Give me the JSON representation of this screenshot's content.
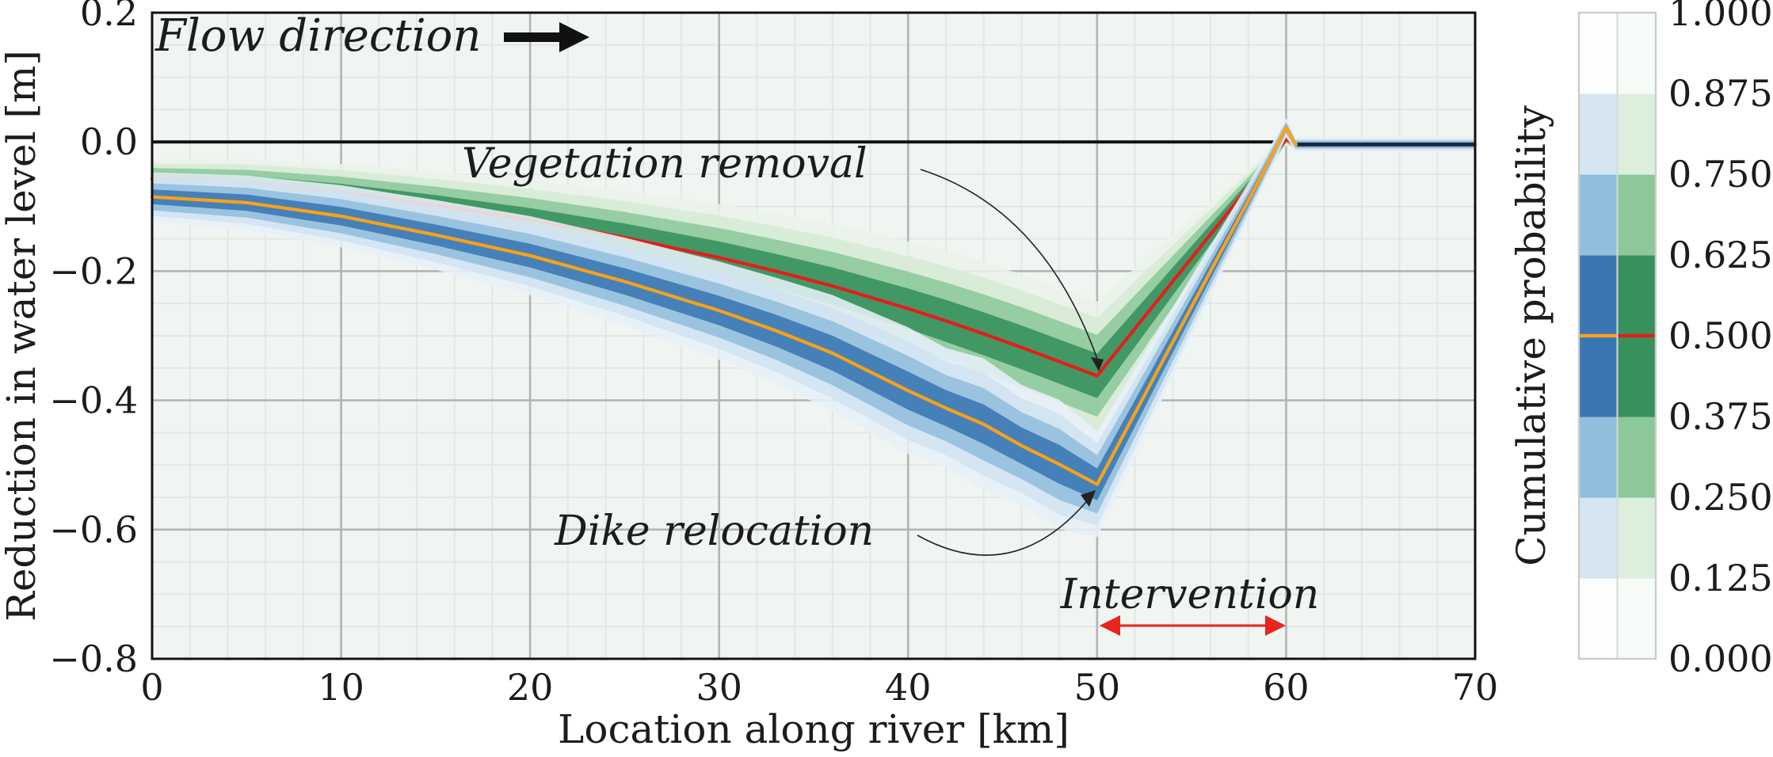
{
  "figure": {
    "background": "#ffffff",
    "plot_background": "#f0f5f2"
  },
  "axes": {
    "x_label": "Location along river [km]",
    "y_label": "Reduction in water level [m]",
    "x_range_km": [
      0,
      70
    ],
    "y_range_m": [
      -0.8,
      0.2
    ],
    "x_ticks": [
      {
        "v": 0,
        "label": "0"
      },
      {
        "v": 10,
        "label": "10"
      },
      {
        "v": 20,
        "label": "20"
      },
      {
        "v": 30,
        "label": "30"
      },
      {
        "v": 40,
        "label": "40"
      },
      {
        "v": 50,
        "label": "50"
      },
      {
        "v": 60,
        "label": "60"
      },
      {
        "v": 70,
        "label": "70"
      }
    ],
    "y_ticks": [
      {
        "v": 0.2,
        "label": "0.2"
      },
      {
        "v": 0.0,
        "label": "0.0"
      },
      {
        "v": -0.2,
        "label": "−0.2"
      },
      {
        "v": -0.4,
        "label": "−0.4"
      },
      {
        "v": -0.6,
        "label": "−0.6"
      },
      {
        "v": -0.8,
        "label": "−0.8"
      }
    ],
    "grid": {
      "x_minor_step_km": 2,
      "y_minor_step_m": 0.05,
      "minor_color": "#e0e8e3",
      "major_color": "#b1b5b3",
      "zero_line_color": "#111111"
    }
  },
  "annotations": {
    "flow_direction": "Flow direction",
    "vegetation_removal": "Vegetation removal",
    "dike_relocation": "Dike relocation",
    "intervention": "Intervention",
    "intervention_arrow_color": "#e8251d",
    "flow_arrow_color": "#111111",
    "leader_line_color": "#222222"
  },
  "colorbar": {
    "label": "Cumulative probability",
    "ticks": [
      "1.000",
      "0.875",
      "0.750",
      "0.625",
      "0.500",
      "0.375",
      "0.250",
      "0.125",
      "0.000"
    ],
    "blue_shades_out_to_in": [
      "#fbfdfe",
      "#d6e5f2",
      "#92bedd",
      "#3a76b2"
    ],
    "green_shades_out_to_in": [
      "#f7fbf7",
      "#dceedc",
      "#8cc89a",
      "#37915c"
    ],
    "median_marker_blue_column": "#f7a21a",
    "median_marker_green_column": "#e51d1d",
    "border_color": "#c9cdcb"
  },
  "chart_data": {
    "type": "area",
    "subtype": "fan-chart (cumulative-probability bands around median)",
    "xlabel": "Location along river [km]",
    "ylabel": "Reduction in water level [m]",
    "xlim": [
      0,
      70
    ],
    "ylim": [
      -0.8,
      0.2
    ],
    "intervention_span_km": [
      50,
      60
    ],
    "band_fractions_out_to_in": [
      1.0,
      0.78,
      0.55,
      0.3
    ],
    "band_probability_ranges": [
      "0.000-0.125 & 0.875-1.000",
      "0.125-0.250 & 0.750-0.875",
      "0.250-0.375 & 0.625-0.750",
      "0.375-0.625"
    ],
    "x": [
      0,
      5,
      10,
      15,
      20,
      25,
      30,
      33,
      36,
      40,
      42,
      44,
      46,
      48,
      50,
      52,
      54,
      56,
      58,
      59,
      60,
      60.5,
      61,
      70
    ],
    "series": [
      {
        "name": "Vegetation removal",
        "median_color": "#e51d1d",
        "shades_out_to_in": [
          "#e9f3e9",
          "#d5ead5",
          "#8cc89a",
          "#37915c"
        ],
        "median": [
          -0.057,
          -0.063,
          -0.078,
          -0.098,
          -0.121,
          -0.148,
          -0.179,
          -0.2,
          -0.223,
          -0.258,
          -0.277,
          -0.297,
          -0.318,
          -0.34,
          -0.362,
          -0.289,
          -0.216,
          -0.143,
          -0.07,
          -0.034,
          0.004,
          -0.004,
          -0.004,
          -0.004
        ],
        "spread": [
          0.03,
          0.036,
          0.044,
          0.052,
          0.062,
          0.072,
          0.083,
          0.089,
          0.096,
          0.104,
          0.108,
          0.111,
          0.113,
          0.114,
          0.115,
          0.094,
          0.072,
          0.05,
          0.028,
          0.018,
          0.01,
          0.009,
          0.009,
          0.009
        ]
      },
      {
        "name": "Dike relocation",
        "median_color": "#f7a21a",
        "shades_out_to_in": [
          "#e7f0f8",
          "#d0e2f1",
          "#92bedd",
          "#3a76b2"
        ],
        "median": [
          -0.085,
          -0.094,
          -0.115,
          -0.144,
          -0.176,
          -0.216,
          -0.261,
          -0.292,
          -0.327,
          -0.385,
          -0.412,
          -0.437,
          -0.47,
          -0.499,
          -0.53,
          -0.42,
          -0.31,
          -0.2,
          -0.091,
          -0.035,
          0.022,
          -0.004,
          -0.004,
          -0.004
        ],
        "spread": [
          0.038,
          0.042,
          0.048,
          0.054,
          0.061,
          0.068,
          0.076,
          0.082,
          0.09,
          0.098,
          0.093,
          0.102,
          0.094,
          0.1,
          0.082,
          0.068,
          0.054,
          0.04,
          0.027,
          0.02,
          0.015,
          0.011,
          0.011,
          0.011
        ]
      }
    ]
  }
}
